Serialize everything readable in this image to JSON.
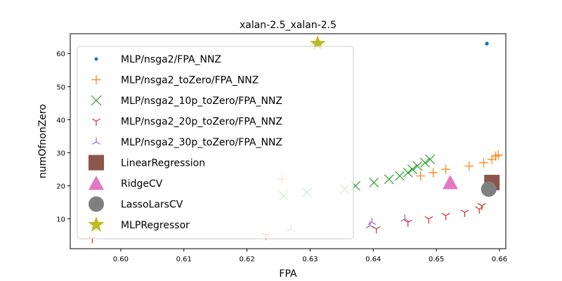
{
  "chart_data": {
    "type": "scatter",
    "title": "xalan-2.5_xalan-2.5",
    "xlabel": "FPA",
    "ylabel": "numOfnonZero",
    "xlim": [
      0.592,
      0.661
    ],
    "ylim": [
      1,
      66
    ],
    "xticks": [
      0.6,
      0.61,
      0.62,
      0.63,
      0.64,
      0.65,
      0.66
    ],
    "xtick_labels": [
      "0.60",
      "0.61",
      "0.62",
      "0.63",
      "0.64",
      "0.65",
      "0.66"
    ],
    "yticks": [
      10,
      20,
      30,
      40,
      50,
      60
    ],
    "ytick_labels": [
      "10",
      "20",
      "30",
      "40",
      "50",
      "60"
    ],
    "grid": false,
    "legend_position": "upper-left",
    "series": [
      {
        "name": "MLP/nsga2/FPA_NNZ",
        "marker": "dot",
        "color": "#1f77b4",
        "points": [
          [
            0.658,
            63
          ]
        ]
      },
      {
        "name": "MLP/nsga2_toZero/FPA_NNZ",
        "marker": "plus",
        "color": "#ff7f0e",
        "points": [
          [
            0.6255,
            22
          ],
          [
            0.6475,
            23
          ],
          [
            0.6495,
            24
          ],
          [
            0.6515,
            25
          ],
          [
            0.6552,
            26
          ],
          [
            0.6575,
            27
          ],
          [
            0.6588,
            28
          ],
          [
            0.6594,
            29
          ],
          [
            0.6598,
            29.3
          ]
        ]
      },
      {
        "name": "MLP/nsga2_10p_toZero/FPA_NNZ",
        "marker": "x",
        "color": "#2ca02c",
        "points": [
          [
            0.6258,
            17
          ],
          [
            0.6295,
            18
          ],
          [
            0.6355,
            19
          ],
          [
            0.6372,
            20
          ],
          [
            0.6401,
            21
          ],
          [
            0.6425,
            22
          ],
          [
            0.6442,
            23
          ],
          [
            0.6455,
            24
          ],
          [
            0.6462,
            25
          ],
          [
            0.647,
            26
          ],
          [
            0.6482,
            27
          ],
          [
            0.649,
            28
          ]
        ]
      },
      {
        "name": "MLP/nsga2_20p_toZero/FPA_NNZ",
        "marker": "tri_down",
        "color": "#d62728",
        "points": [
          [
            0.5955,
            4
          ],
          [
            0.623,
            5
          ],
          [
            0.6405,
            7
          ],
          [
            0.6455,
            9
          ],
          [
            0.6488,
            10
          ],
          [
            0.6515,
            11
          ],
          [
            0.6545,
            12
          ],
          [
            0.6568,
            13
          ],
          [
            0.6572,
            14
          ]
        ]
      },
      {
        "name": "MLP/nsga2_30p_toZero/FPA_NNZ",
        "marker": "tri_up",
        "color": "#9467bd",
        "points": [
          [
            0.627,
            7
          ],
          [
            0.6395,
            8
          ],
          [
            0.6398,
            9
          ],
          [
            0.645,
            10
          ]
        ]
      },
      {
        "name": "LinearRegression",
        "marker": "square",
        "color": "#8c564b",
        "points": [
          [
            0.6588,
            21
          ]
        ]
      },
      {
        "name": "RidgeCV",
        "marker": "triangle",
        "color": "#e377c2",
        "points": [
          [
            0.6522,
            21
          ]
        ]
      },
      {
        "name": "LassoLarsCV",
        "marker": "circle",
        "color": "#7f7f7f",
        "points": [
          [
            0.6583,
            19
          ]
        ]
      },
      {
        "name": "MLPRegressor",
        "marker": "star",
        "color": "#bcbd22",
        "points": [
          [
            0.6312,
            63
          ]
        ]
      }
    ]
  }
}
